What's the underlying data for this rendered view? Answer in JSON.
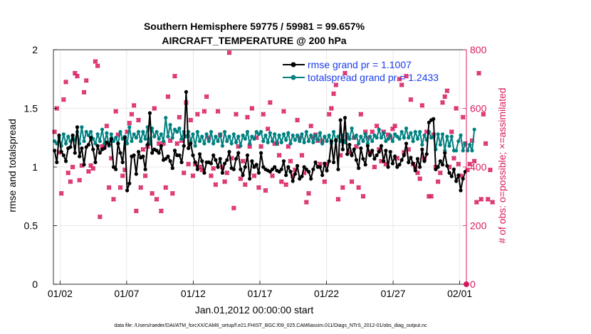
{
  "chart_data": {
    "type": "line",
    "title_line1": "Southern Hemisphere 59775 / 59981 = 99.657%",
    "title_line2": "AIRCRAFT_TEMPERATURE @ 200 hPa",
    "xlabel": "Jan.01,2012 00:00:00 start",
    "ylabel_left": "rmse and totalspread",
    "ylabel_right": "# of obs: o=possible; ×=assimilated",
    "xlim": [
      0.5,
      31.5
    ],
    "ylim_left": [
      0,
      2
    ],
    "ylim_right": [
      0,
      800
    ],
    "xticks": [
      {
        "v": 1,
        "label": "01/02"
      },
      {
        "v": 6,
        "label": "01/07"
      },
      {
        "v": 11,
        "label": "01/12"
      },
      {
        "v": 16,
        "label": "01/17"
      },
      {
        "v": 21,
        "label": "01/22"
      },
      {
        "v": 26,
        "label": "01/27"
      },
      {
        "v": 31,
        "label": "02/01"
      }
    ],
    "yticks_left": [
      0,
      0.5,
      1,
      1.5,
      2
    ],
    "yticks_right": [
      0,
      200,
      400,
      600,
      800
    ],
    "grid": true,
    "legend": [
      {
        "label": "rmse grand pr = 1.1007",
        "color": "#000000"
      },
      {
        "label": "totalspread grand pr = 1.2433",
        "color": "#008080"
      }
    ],
    "colors": {
      "rmse": "#000000",
      "spread": "#008080",
      "obs": "#d81b60",
      "legend_text": "#1a3cf0"
    },
    "series": [
      {
        "name": "rmse",
        "axis": "left",
        "values": [
          1.14,
          1.04,
          1.27,
          1.13,
          1.1,
          1.05,
          1.16,
          1.17,
          1.27,
          1.12,
          1.34,
          1.09,
          1.16,
          1.02,
          1.17,
          1.19,
          1.25,
          1.15,
          1.04,
          1.18,
          1.12,
          1.15,
          1.16,
          1.21,
          1.19,
          1.24,
          1.0,
          0.98,
          1.2,
          1.12,
          1.04,
          1.25,
          0.8,
          0.86,
          1.09,
          1.1,
          0.94,
          1.13,
          1.08,
          1.09,
          0.98,
          1.19,
          1.46,
          1.12,
          1.15,
          1.14,
          1.12,
          1.18,
          1.06,
          1.07,
          1.09,
          1.05,
          0.99,
          1.14,
          1.1,
          1.1,
          1.04,
          1.18,
          1.64,
          1.16,
          1.2,
          1.1,
          1.04,
          0.98,
          1.11,
          1.05,
          0.95,
          1.04,
          1.04,
          1.03,
          1.1,
          1.06,
          1.0,
          1.07,
          0.95,
          1.03,
          1.06,
          1.13,
          0.99,
          0.98,
          1.07,
          1.12,
          0.98,
          0.93,
          1.0,
          1.1,
          0.9,
          1.05,
          1.0,
          1.02,
          0.95,
          1.12,
          1.0,
          0.98,
          0.97,
          0.96,
          0.98,
          1.0,
          0.97,
          0.96,
          0.98,
          1.05,
          0.93,
          1.0,
          0.96,
          0.88,
          0.94,
          1.01,
          0.9,
          0.92,
          1.0,
          0.98,
          0.96,
          0.9,
          0.98,
          1.04,
          1.0,
          1.0,
          0.93,
          1.03,
          0.97,
          1.05,
          1.22,
          1.04,
          1.23,
          0.98,
          1.4,
          1.15,
          1.42,
          1.11,
          1.19,
          1.1,
          1.15,
          1.06,
          0.99,
          1.16,
          1.07,
          1.02,
          1.18,
          1.1,
          1.14,
          1.07,
          1.1,
          1.13,
          1.18,
          1.05,
          1.14,
          1.0,
          1.13,
          1.03,
          1.09,
          1.0,
          1.02,
          1.06,
          1.1,
          1.2,
          1.04,
          1.08,
          1.03,
          0.97,
          1.07,
          1.0,
          1.15,
          1.05,
          1.11,
          1.38,
          1.4,
          1.41,
          0.98,
          1.0,
          1.05,
          1.02,
          1.12,
          1.01,
          0.95,
          0.92,
          0.98,
          0.88,
          0.93,
          0.8,
          0.9,
          0.96
        ]
      },
      {
        "name": "totalspread",
        "axis": "left",
        "values": [
          1.22,
          1.2,
          1.25,
          1.18,
          1.28,
          1.2,
          1.26,
          1.22,
          1.25,
          1.23,
          1.3,
          1.2,
          1.34,
          1.22,
          1.3,
          1.27,
          1.3,
          1.24,
          1.2,
          1.28,
          1.22,
          1.32,
          1.2,
          1.29,
          1.18,
          1.28,
          1.22,
          1.25,
          1.2,
          1.3,
          1.24,
          1.26,
          1.2,
          1.34,
          1.22,
          1.28,
          1.25,
          1.3,
          1.22,
          1.3,
          1.24,
          1.34,
          1.2,
          1.33,
          1.26,
          1.3,
          1.24,
          1.28,
          1.22,
          1.42,
          1.26,
          1.36,
          1.25,
          1.32,
          1.3,
          1.33,
          1.24,
          1.3,
          1.26,
          1.3,
          1.22,
          1.28,
          1.18,
          1.3,
          1.22,
          1.26,
          1.2,
          1.28,
          1.22,
          1.3,
          1.2,
          1.26,
          1.22,
          1.28,
          1.18,
          1.3,
          1.22,
          1.26,
          1.2,
          1.28,
          1.21,
          1.26,
          1.18,
          1.27,
          1.24,
          1.3,
          1.2,
          1.26,
          1.24,
          1.3,
          1.28,
          1.3,
          1.22,
          1.27,
          1.21,
          1.29,
          1.22,
          1.28,
          1.2,
          1.27,
          1.21,
          1.28,
          1.23,
          1.29,
          1.2,
          1.27,
          1.23,
          1.27,
          1.22,
          1.28,
          1.21,
          1.3,
          1.22,
          1.27,
          1.21,
          1.27,
          1.23,
          1.29,
          1.2,
          1.26,
          1.22,
          1.27,
          1.2,
          1.3,
          1.22,
          1.26,
          1.22,
          1.27,
          1.21,
          1.28,
          1.24,
          1.33,
          1.25,
          1.27,
          1.2,
          1.26,
          1.22,
          1.28,
          1.2,
          1.26,
          1.22,
          1.27,
          1.25,
          1.32,
          1.25,
          1.29,
          1.22,
          1.24,
          1.27,
          1.22,
          1.28,
          1.26,
          1.24,
          1.3,
          1.25,
          1.33,
          1.25,
          1.29,
          1.22,
          1.3,
          1.24,
          1.3,
          1.19,
          1.27,
          1.23,
          1.3,
          1.25,
          1.26,
          1.15,
          1.28,
          1.19,
          1.28,
          1.14,
          1.26,
          1.18,
          1.26,
          1.14,
          1.14,
          1.22,
          1.27,
          1.14,
          1.2,
          1.14,
          1.19,
          1.14,
          1.32
        ]
      },
      {
        "name": "obs_possible",
        "axis": "right",
        "values": [
          520,
          600,
          450,
          310,
          630,
          690,
          380,
          350,
          400,
          720,
          710,
          355,
          405,
          655,
          695,
          385,
          405,
          395,
          760,
          745,
          230,
          470,
          470,
          540,
          330,
          430,
          290,
          590,
          510,
          330,
          370,
          390,
          520,
          550,
          580,
          610,
          250,
          560,
          330,
          460,
          370,
          470,
          480,
          310,
          600,
          290,
          480,
          250,
          480,
          330,
          640,
          490,
          310,
          710,
          480,
          570,
          490,
          380,
          620,
          410,
          560,
          370,
          410,
          580,
          400,
          390,
          590,
          640,
          500,
          370,
          395,
          340,
          590,
          510,
          400,
          350,
          380,
          790,
          430,
          260,
          580,
          470,
          360,
          420,
          340,
          570,
          470,
          600,
          370,
          500,
          330,
          470,
          580,
          320,
          530,
          620,
          370,
          480,
          480,
          440,
          350,
          590,
          340,
          470,
          420,
          370,
          390,
          560,
          500,
          440,
          380,
          280,
          310,
          540,
          500,
          510,
          490,
          410,
          490,
          350,
          410,
          580,
          600,
          650,
          680,
          290,
          440,
          330,
          720,
          500,
          450,
          350,
          500,
          470,
          330,
          580,
          300,
          520,
          500,
          450,
          520,
          400,
          540,
          460,
          420,
          520,
          410,
          510,
          500,
          530,
          540,
          430,
          700,
          680,
          450,
          710,
          460,
          630,
          410,
          400,
          380,
          360,
          610,
          430,
          520,
          300,
          300,
          510,
          400,
          350,
          380,
          620,
          640,
          660,
          400,
          520,
          430,
          600,
          410,
          370,
          570,
          480,
          390,
          410,
          490,
          420,
          280,
          720,
          290,
          580,
          480,
          290,
          390,
          280
        ]
      },
      {
        "name": "obs_assimilated",
        "axis": "right",
        "values": [
          520,
          600,
          450,
          310,
          630,
          690,
          380,
          350,
          400,
          720,
          710,
          355,
          405,
          655,
          695,
          385,
          405,
          395,
          760,
          745,
          230,
          470,
          470,
          540,
          330,
          430,
          290,
          590,
          510,
          330,
          370,
          390,
          520,
          550,
          580,
          610,
          250,
          560,
          330,
          460,
          370,
          470,
          480,
          310,
          600,
          290,
          480,
          250,
          480,
          330,
          640,
          490,
          310,
          710,
          480,
          570,
          490,
          380,
          620,
          410,
          560,
          370,
          410,
          580,
          400,
          390,
          590,
          640,
          500,
          370,
          395,
          340,
          590,
          510,
          400,
          350,
          380,
          790,
          430,
          260,
          580,
          470,
          360,
          420,
          340,
          570,
          470,
          600,
          370,
          500,
          330,
          470,
          580,
          320,
          530,
          620,
          370,
          480,
          480,
          440,
          350,
          590,
          340,
          470,
          420,
          370,
          390,
          560,
          500,
          440,
          380,
          280,
          310,
          540,
          500,
          510,
          490,
          410,
          490,
          350,
          410,
          580,
          600,
          650,
          680,
          290,
          440,
          330,
          720,
          500,
          450,
          350,
          500,
          470,
          330,
          580,
          300,
          520,
          500,
          450,
          520,
          400,
          540,
          460,
          420,
          520,
          410,
          510,
          500,
          530,
          540,
          430,
          700,
          680,
          450,
          710,
          460,
          630,
          410,
          400,
          380,
          360,
          610,
          430,
          520,
          300,
          300,
          510,
          400,
          350,
          380,
          620,
          640,
          660,
          400,
          520,
          430,
          600,
          410,
          370,
          570,
          480,
          390,
          410,
          490,
          420,
          280,
          720,
          290,
          580,
          480,
          290,
          390,
          280
        ]
      }
    ]
  },
  "footer": "data file: /Users/raeder/DAI/ATM_forcXX/CAM6_setup/f.e21.FHIST_BGC.f09_025.CAM6assim.011/Diags_NTrS_2012-01/obs_diag_output.nc"
}
